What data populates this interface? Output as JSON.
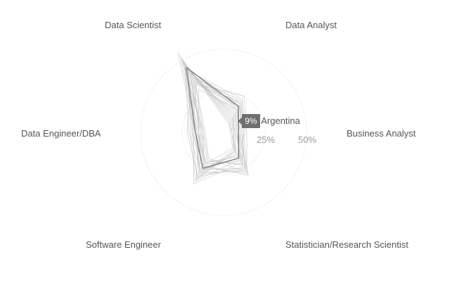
{
  "chart_data": {
    "type": "radar",
    "axes": [
      "Data Scientist",
      "Data Analyst",
      "Business Analyst",
      "Statistician/Research Scientist",
      "Software Engineer",
      "Data Engineer/DBA"
    ],
    "radial_ticks": [
      "25%",
      "50%"
    ],
    "radial_range": [
      0,
      50
    ],
    "grid": true,
    "legend": "none",
    "colors": {
      "line": "#bdbdbd",
      "highlight": "#8a8a8a",
      "grid": "#e6e6e6"
    },
    "series": [
      {
        "name": "Argentina",
        "values": [
          45,
          18,
          9,
          18,
          25,
          17
        ]
      },
      {
        "values": [
          52,
          6,
          5,
          12,
          30,
          16
        ]
      },
      {
        "values": [
          48,
          10,
          7,
          15,
          28,
          18
        ]
      },
      {
        "values": [
          40,
          15,
          8,
          20,
          22,
          14
        ]
      },
      {
        "values": [
          36,
          20,
          10,
          25,
          26,
          15
        ]
      },
      {
        "values": [
          44,
          12,
          6,
          13,
          32,
          19
        ]
      },
      {
        "values": [
          50,
          8,
          5,
          16,
          24,
          12
        ]
      },
      {
        "values": [
          38,
          22,
          12,
          22,
          20,
          13
        ]
      },
      {
        "values": [
          42,
          17,
          9,
          19,
          34,
          20
        ]
      },
      {
        "values": [
          34,
          25,
          14,
          28,
          18,
          11
        ]
      },
      {
        "values": [
          46,
          11,
          6,
          14,
          27,
          21
        ]
      },
      {
        "values": [
          30,
          16,
          9,
          30,
          23,
          15
        ]
      },
      {
        "values": [
          55,
          7,
          4,
          11,
          22,
          17
        ]
      },
      {
        "values": [
          41,
          19,
          11,
          26,
          29,
          14
        ]
      },
      {
        "values": [
          37,
          14,
          8,
          21,
          36,
          18
        ]
      },
      {
        "values": [
          43,
          23,
          13,
          17,
          21,
          16
        ]
      },
      {
        "values": [
          39,
          13,
          7,
          24,
          31,
          22
        ]
      },
      {
        "values": [
          47,
          16,
          10,
          18,
          26,
          13
        ]
      },
      {
        "values": [
          33,
          21,
          12,
          29,
          24,
          19
        ]
      },
      {
        "values": [
          49,
          9,
          6,
          13,
          33,
          15
        ]
      },
      {
        "values": [
          35,
          18,
          9,
          23,
          19,
          12
        ]
      },
      {
        "values": [
          44,
          20,
          11,
          27,
          28,
          17
        ]
      }
    ],
    "highlight": {
      "series": "Argentina",
      "axis": "Business Analyst",
      "value_label": "9%"
    }
  }
}
